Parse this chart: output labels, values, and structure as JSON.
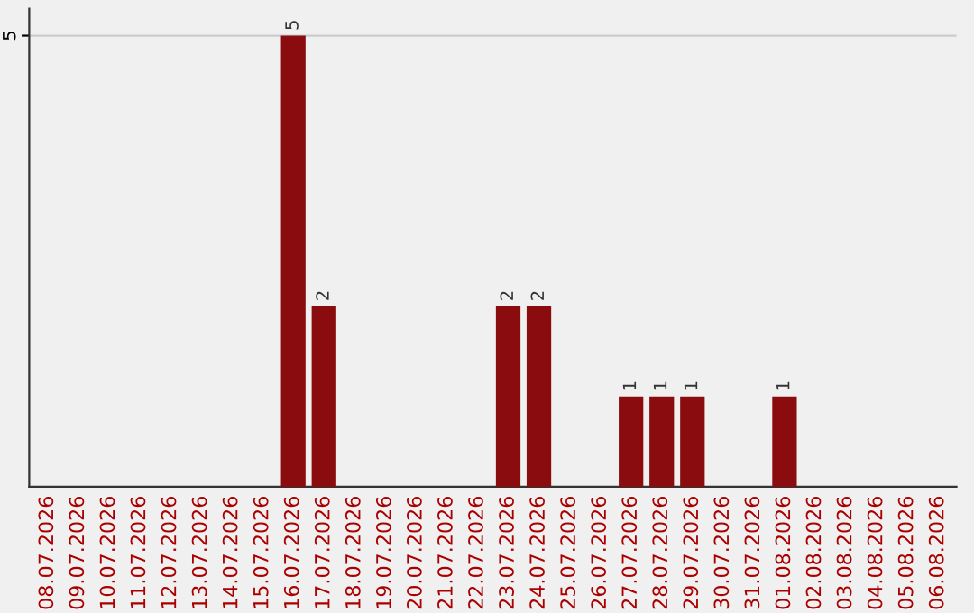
{
  "chart_data": {
    "type": "bar",
    "categories": [
      "08.07.2026",
      "09.07.2026",
      "10.07.2026",
      "11.07.2026",
      "12.07.2026",
      "13.07.2026",
      "14.07.2026",
      "15.07.2026",
      "16.07.2026",
      "17.07.2026",
      "18.07.2026",
      "19.07.2026",
      "20.07.2026",
      "21.07.2026",
      "22.07.2026",
      "23.07.2026",
      "24.07.2026",
      "25.07.2026",
      "26.07.2026",
      "27.07.2026",
      "28.07.2026",
      "29.07.2026",
      "30.07.2026",
      "31.07.2026",
      "01.08.2026",
      "02.08.2026",
      "03.08.2026",
      "04.08.2026",
      "05.08.2026",
      "06.08.2026"
    ],
    "values": [
      0,
      0,
      0,
      0,
      0,
      0,
      0,
      0,
      5,
      2,
      0,
      0,
      0,
      0,
      0,
      2,
      2,
      0,
      0,
      1,
      1,
      1,
      0,
      0,
      1,
      0,
      0,
      0,
      0,
      0
    ],
    "value_labels": [
      null,
      null,
      null,
      null,
      null,
      null,
      null,
      null,
      "5",
      "2",
      null,
      null,
      null,
      null,
      null,
      "2",
      "2",
      null,
      null,
      "1",
      "1",
      "1",
      null,
      null,
      "1",
      null,
      null,
      null,
      null,
      null
    ],
    "color": "#8b0c0f",
    "ylim": [
      0,
      5.3
    ],
    "yticks": [
      5
    ],
    "grid": "y"
  }
}
